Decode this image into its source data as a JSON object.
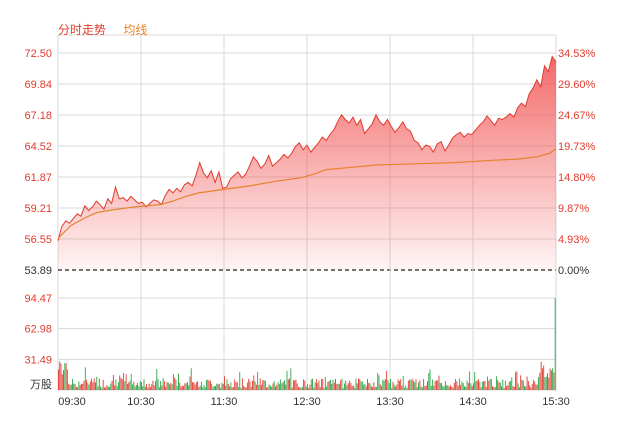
{
  "legend": {
    "price_label": "分时走势",
    "avg_label": "均线"
  },
  "colors": {
    "up": "#e23b2e",
    "down": "#2ba84a",
    "avg": "#e6822e",
    "grid": "#d9d9d9",
    "text_red": "#e23b2e",
    "text_dark": "#333333"
  },
  "chart_data": {
    "type": "line",
    "title": "分时走势",
    "prev_close": 53.89,
    "price_axis": {
      "ticks": [
        "72.50",
        "69.84",
        "67.18",
        "64.52",
        "61.87",
        "59.21",
        "56.55",
        "53.89"
      ],
      "ylim": [
        53.89,
        72.5
      ]
    },
    "pct_axis": {
      "ticks": [
        "34.53%",
        "29.60%",
        "24.67%",
        "19.73%",
        "14.80%",
        "9.87%",
        "4.93%",
        "0.00%"
      ],
      "ylim": [
        0,
        34.53
      ]
    },
    "volume_axis": {
      "ticks": [
        "94.47",
        "62.98",
        "31.49"
      ],
      "unit": "万股",
      "ylim": [
        0,
        94.47
      ]
    },
    "time_ticks": [
      "09:30",
      "10:30",
      "11:30",
      "12:30",
      "13:30",
      "14:30",
      "15:30"
    ],
    "minutes_total": 390,
    "series": [
      {
        "name": "分时走势",
        "points": [
          [
            0,
            56.4
          ],
          [
            3,
            57.6
          ],
          [
            6,
            58.1
          ],
          [
            9,
            57.9
          ],
          [
            12,
            58.3
          ],
          [
            15,
            58.7
          ],
          [
            18,
            58.5
          ],
          [
            21,
            59.4
          ],
          [
            24,
            59.0
          ],
          [
            27,
            59.3
          ],
          [
            30,
            59.8
          ],
          [
            33,
            59.5
          ],
          [
            36,
            59.1
          ],
          [
            39,
            60.0
          ],
          [
            42,
            59.6
          ],
          [
            45,
            61.0
          ],
          [
            48,
            60.0
          ],
          [
            51,
            60.1
          ],
          [
            54,
            59.8
          ],
          [
            57,
            60.2
          ],
          [
            60,
            59.9
          ],
          [
            63,
            59.6
          ],
          [
            66,
            59.7
          ],
          [
            69,
            59.3
          ],
          [
            72,
            59.6
          ],
          [
            75,
            59.9
          ],
          [
            78,
            59.8
          ],
          [
            81,
            59.5
          ],
          [
            84,
            60.3
          ],
          [
            87,
            60.8
          ],
          [
            90,
            60.5
          ],
          [
            93,
            60.9
          ],
          [
            96,
            60.6
          ],
          [
            99,
            61.2
          ],
          [
            102,
            61.4
          ],
          [
            105,
            61.1
          ],
          [
            108,
            62.0
          ],
          [
            111,
            63.1
          ],
          [
            114,
            62.2
          ],
          [
            117,
            61.8
          ],
          [
            120,
            62.4
          ],
          [
            123,
            61.4
          ],
          [
            126,
            62.3
          ],
          [
            129,
            60.9
          ],
          [
            132,
            61.0
          ],
          [
            135,
            61.7
          ],
          [
            138,
            62.0
          ],
          [
            141,
            62.3
          ],
          [
            144,
            61.8
          ],
          [
            147,
            62.1
          ],
          [
            150,
            62.8
          ],
          [
            153,
            63.6
          ],
          [
            156,
            63.2
          ],
          [
            159,
            62.6
          ],
          [
            162,
            63.0
          ],
          [
            165,
            63.7
          ],
          [
            168,
            62.8
          ],
          [
            171,
            63.1
          ],
          [
            174,
            63.4
          ],
          [
            177,
            63.8
          ],
          [
            180,
            63.5
          ],
          [
            183,
            63.9
          ],
          [
            186,
            64.5
          ],
          [
            189,
            64.8
          ],
          [
            192,
            64.2
          ],
          [
            195,
            64.6
          ],
          [
            198,
            64.0
          ],
          [
            201,
            64.4
          ],
          [
            204,
            64.8
          ],
          [
            207,
            65.3
          ],
          [
            210,
            65.0
          ],
          [
            213,
            65.5
          ],
          [
            216,
            65.9
          ],
          [
            219,
            66.6
          ],
          [
            222,
            67.2
          ],
          [
            225,
            66.8
          ],
          [
            228,
            66.5
          ],
          [
            231,
            67.0
          ],
          [
            234,
            66.3
          ],
          [
            237,
            66.8
          ],
          [
            240,
            65.6
          ],
          [
            243,
            66.0
          ],
          [
            246,
            66.4
          ],
          [
            249,
            67.2
          ],
          [
            252,
            66.6
          ],
          [
            255,
            66.3
          ],
          [
            258,
            66.8
          ],
          [
            261,
            66.2
          ],
          [
            264,
            65.7
          ],
          [
            267,
            66.1
          ],
          [
            270,
            66.6
          ],
          [
            273,
            66.0
          ],
          [
            276,
            65.8
          ],
          [
            279,
            65.0
          ],
          [
            282,
            64.8
          ],
          [
            285,
            64.2
          ],
          [
            288,
            64.6
          ],
          [
            291,
            64.5
          ],
          [
            294,
            64.0
          ],
          [
            297,
            64.7
          ],
          [
            300,
            64.9
          ],
          [
            303,
            64.1
          ],
          [
            306,
            64.6
          ],
          [
            309,
            65.2
          ],
          [
            312,
            65.5
          ],
          [
            315,
            65.7
          ],
          [
            318,
            65.3
          ],
          [
            321,
            65.6
          ],
          [
            324,
            65.5
          ],
          [
            327,
            65.9
          ],
          [
            330,
            66.3
          ],
          [
            333,
            66.6
          ],
          [
            336,
            67.1
          ],
          [
            339,
            66.7
          ],
          [
            342,
            66.3
          ],
          [
            345,
            66.9
          ],
          [
            348,
            66.8
          ],
          [
            351,
            67.0
          ],
          [
            354,
            67.3
          ],
          [
            357,
            67.0
          ],
          [
            360,
            67.8
          ],
          [
            363,
            68.2
          ],
          [
            366,
            67.9
          ],
          [
            369,
            69.0
          ],
          [
            372,
            69.5
          ],
          [
            375,
            70.2
          ],
          [
            378,
            69.6
          ],
          [
            381,
            71.4
          ],
          [
            384,
            70.9
          ],
          [
            387,
            72.2
          ],
          [
            390,
            71.7
          ]
        ]
      },
      {
        "name": "均线",
        "points": [
          [
            0,
            56.6
          ],
          [
            10,
            57.7
          ],
          [
            20,
            58.3
          ],
          [
            30,
            58.8
          ],
          [
            40,
            59.0
          ],
          [
            60,
            59.3
          ],
          [
            80,
            59.5
          ],
          [
            90,
            59.8
          ],
          [
            100,
            60.2
          ],
          [
            110,
            60.5
          ],
          [
            130,
            60.8
          ],
          [
            150,
            61.1
          ],
          [
            170,
            61.5
          ],
          [
            190,
            61.8
          ],
          [
            200,
            62.1
          ],
          [
            210,
            62.5
          ],
          [
            230,
            62.7
          ],
          [
            250,
            62.9
          ],
          [
            280,
            63.0
          ],
          [
            310,
            63.1
          ],
          [
            340,
            63.3
          ],
          [
            360,
            63.4
          ],
          [
            375,
            63.6
          ],
          [
            385,
            63.9
          ],
          [
            390,
            64.3
          ]
        ]
      }
    ],
    "volume_peak": {
      "minute": 389,
      "value": 94.47
    }
  }
}
